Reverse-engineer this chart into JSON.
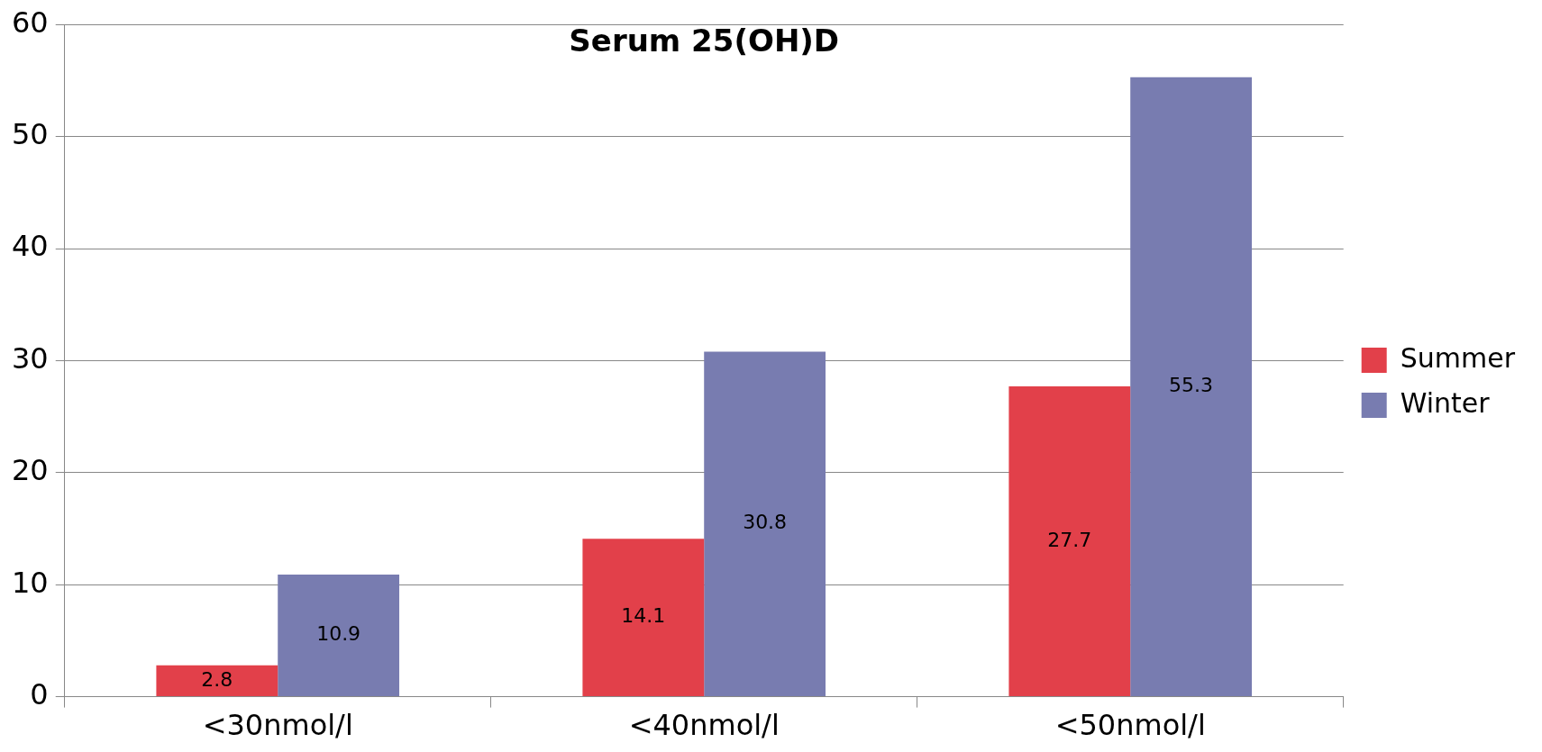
{
  "chart_data": {
    "type": "bar",
    "title": "Serum 25(OH)D",
    "categories": [
      "<30nmol/l",
      "<40nmol/l",
      "<50nmol/l"
    ],
    "series": [
      {
        "name": "Summer",
        "color": "#e2404a",
        "values": [
          2.8,
          14.1,
          27.7
        ]
      },
      {
        "name": "Winter",
        "color": "#787cb0",
        "values": [
          10.9,
          30.8,
          55.3
        ]
      }
    ],
    "ylim": [
      0,
      60
    ],
    "yticks": [
      0,
      10,
      20,
      30,
      40,
      50,
      60
    ],
    "grid": "y",
    "legend": "right",
    "data_labels": true
  }
}
